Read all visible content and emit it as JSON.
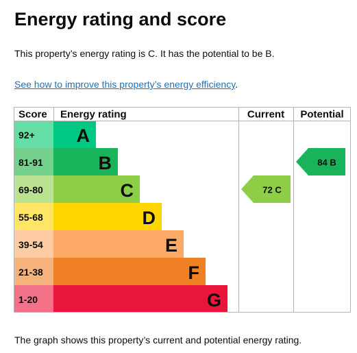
{
  "heading": "Energy rating and score",
  "summary": "This property’s energy rating is C. It has the potential to be B.",
  "improve_link": "See how to improve this property’s energy efficiency",
  "improve_link_suffix": ".",
  "caption": "The graph shows this property’s current and potential energy rating.",
  "chart": {
    "headers": {
      "score": "Score",
      "rating": "Energy rating",
      "current": "Current",
      "potential": "Potential"
    },
    "bands": [
      {
        "score": "92+",
        "letter": "A",
        "color": "#00c781",
        "light": "#66dda5"
      },
      {
        "score": "81-91",
        "letter": "B",
        "color": "#19b459",
        "light": "#75d28e"
      },
      {
        "score": "69-80",
        "letter": "C",
        "color": "#8dce46",
        "light": "#bbe290"
      },
      {
        "score": "55-68",
        "letter": "D",
        "color": "#ffd500",
        "light": "#ffe566"
      },
      {
        "score": "39-54",
        "letter": "E",
        "color": "#fcaa65",
        "light": "#fdcca3"
      },
      {
        "score": "21-38",
        "letter": "F",
        "color": "#ef8023",
        "light": "#f5b37b"
      },
      {
        "score": "1-20",
        "letter": "G",
        "color": "#e9153b",
        "light": "#f27389"
      }
    ],
    "current": {
      "value": 72,
      "letter": "C",
      "label": "72  C"
    },
    "potential": {
      "value": 84,
      "letter": "B",
      "label": "84  B"
    }
  }
}
